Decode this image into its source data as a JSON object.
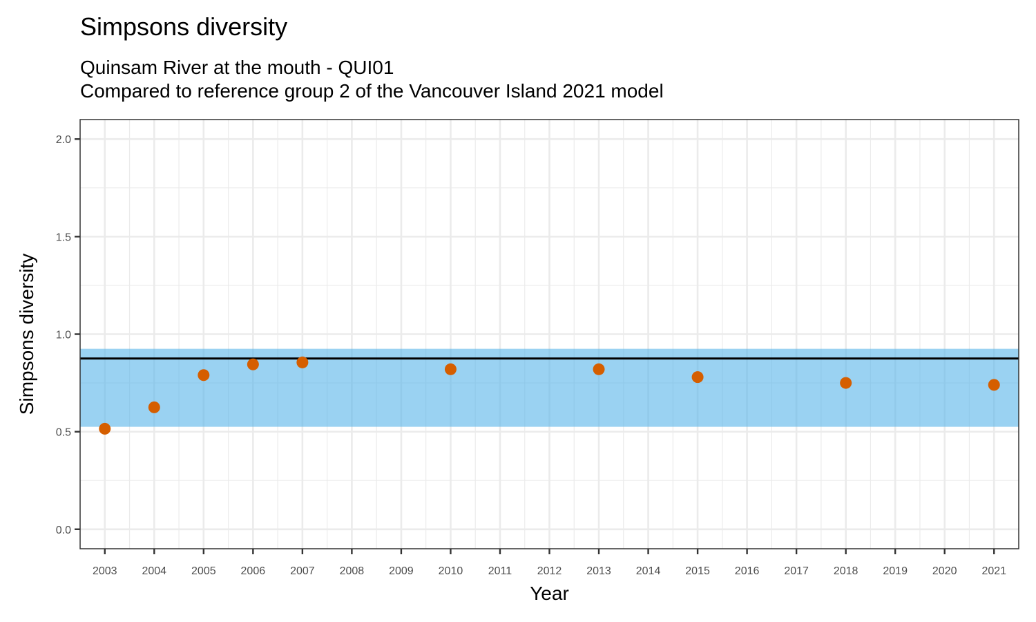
{
  "chart_data": {
    "type": "scatter",
    "title": "Simpsons diversity",
    "subtitle_lines": [
      "Quinsam River at the mouth - QUI01",
      "Compared to reference group 2 of the Vancouver Island 2021 model"
    ],
    "xlabel": "Year",
    "ylabel": "Simpsons diversity",
    "x_ticks": [
      "2003",
      "2004",
      "2005",
      "2006",
      "2007",
      "2008",
      "2009",
      "2010",
      "2011",
      "2012",
      "2013",
      "2014",
      "2015",
      "2016",
      "2017",
      "2018",
      "2019",
      "2020",
      "2021"
    ],
    "y_ticks": [
      "0.0",
      "0.5",
      "1.0",
      "1.5",
      "2.0"
    ],
    "ylim": [
      -0.1,
      2.1
    ],
    "grid": true,
    "reference_band": {
      "low": 0.525,
      "high": 0.925,
      "color": "#56b4e9"
    },
    "reference_line": {
      "value": 0.875,
      "color": "#000000"
    },
    "point_color": "#d55e00",
    "series": [
      {
        "x": [
          "2003",
          "2004",
          "2005",
          "2006",
          "2007",
          "2010",
          "2013",
          "2015",
          "2018",
          "2021"
        ],
        "values": [
          0.515,
          0.625,
          0.79,
          0.845,
          0.855,
          0.82,
          0.82,
          0.78,
          0.75,
          0.74
        ]
      }
    ]
  }
}
